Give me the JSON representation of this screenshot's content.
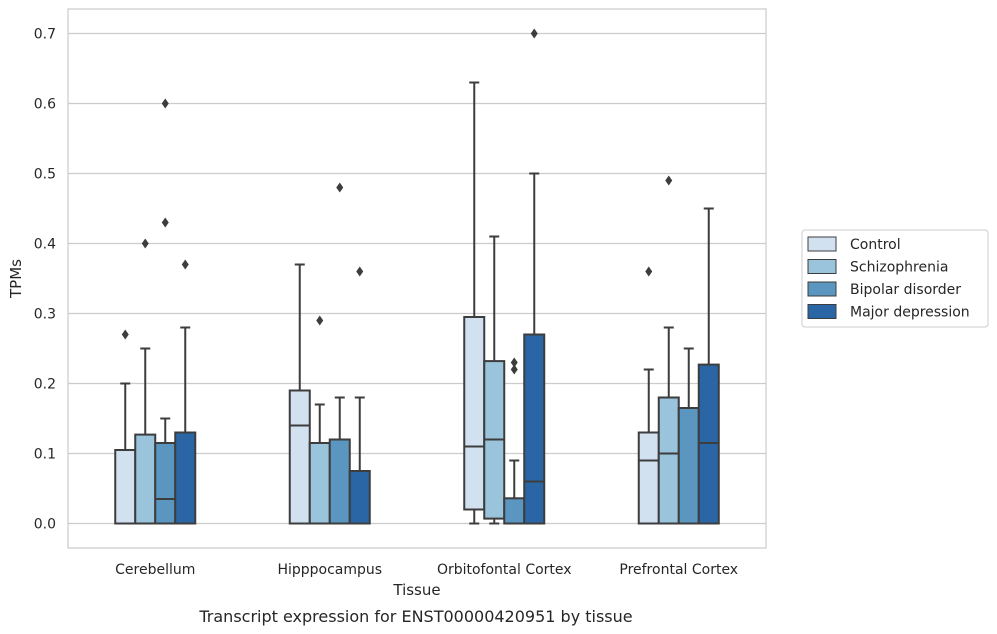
{
  "chart_data": {
    "type": "box",
    "caption": "Transcript expression for ENST00000420951 by tissue",
    "xlabel": "Tissue",
    "ylabel": "TPMs",
    "ylim": [
      -0.035,
      0.735
    ],
    "yticks": [
      0.0,
      0.1,
      0.2,
      0.3,
      0.4,
      0.5,
      0.6,
      0.7
    ],
    "ytick_labels": [
      "0.0",
      "0.1",
      "0.2",
      "0.3",
      "0.4",
      "0.5",
      "0.6",
      "0.7"
    ],
    "grid": true,
    "legend_position": "right",
    "categories": [
      "Cerebellum",
      "Hipppocampus",
      "Orbitofontal Cortex",
      "Prefrontal Cortex"
    ],
    "series": [
      {
        "name": "Control",
        "color": "#d2e1f0",
        "boxes": [
          {
            "whislo": 0.0,
            "q1": 0.0,
            "med": 0.0,
            "q3": 0.105,
            "whishi": 0.2,
            "fliers": [
              0.27
            ]
          },
          {
            "whislo": 0.0,
            "q1": 0.0,
            "med": 0.14,
            "q3": 0.19,
            "whishi": 0.37,
            "fliers": []
          },
          {
            "whislo": 0.0,
            "q1": 0.02,
            "med": 0.11,
            "q3": 0.295,
            "whishi": 0.63,
            "fliers": []
          },
          {
            "whislo": 0.0,
            "q1": 0.0,
            "med": 0.09,
            "q3": 0.13,
            "whishi": 0.22,
            "fliers": [
              0.36
            ]
          }
        ]
      },
      {
        "name": "Schizophrenia",
        "color": "#9ac4db",
        "boxes": [
          {
            "whislo": 0.0,
            "q1": 0.0,
            "med": 0.0,
            "q3": 0.127,
            "whishi": 0.25,
            "fliers": [
              0.4
            ]
          },
          {
            "whislo": 0.0,
            "q1": 0.0,
            "med": 0.0,
            "q3": 0.115,
            "whishi": 0.17,
            "fliers": [
              0.29
            ]
          },
          {
            "whislo": 0.0,
            "q1": 0.007,
            "med": 0.12,
            "q3": 0.232,
            "whishi": 0.41,
            "fliers": []
          },
          {
            "whislo": 0.0,
            "q1": 0.0,
            "med": 0.1,
            "q3": 0.18,
            "whishi": 0.28,
            "fliers": [
              0.49
            ]
          }
        ]
      },
      {
        "name": "Bipolar disorder",
        "color": "#5a96c0",
        "boxes": [
          {
            "whislo": 0.0,
            "q1": 0.0,
            "med": 0.035,
            "q3": 0.115,
            "whishi": 0.15,
            "fliers": [
              0.43,
              0.6
            ]
          },
          {
            "whislo": 0.0,
            "q1": 0.0,
            "med": 0.0,
            "q3": 0.12,
            "whishi": 0.18,
            "fliers": [
              0.48
            ]
          },
          {
            "whislo": 0.0,
            "q1": 0.0,
            "med": 0.0,
            "q3": 0.036,
            "whishi": 0.09,
            "fliers": [
              0.22,
              0.23
            ]
          },
          {
            "whislo": 0.0,
            "q1": 0.0,
            "med": 0.0,
            "q3": 0.165,
            "whishi": 0.25,
            "fliers": []
          }
        ]
      },
      {
        "name": "Major depression",
        "color": "#2a66a6",
        "boxes": [
          {
            "whislo": 0.0,
            "q1": 0.0,
            "med": 0.0,
            "q3": 0.13,
            "whishi": 0.28,
            "fliers": [
              0.37
            ]
          },
          {
            "whislo": 0.0,
            "q1": 0.0,
            "med": 0.0,
            "q3": 0.075,
            "whishi": 0.18,
            "fliers": [
              0.36
            ]
          },
          {
            "whislo": 0.0,
            "q1": 0.0,
            "med": 0.06,
            "q3": 0.27,
            "whishi": 0.5,
            "fliers": [
              0.7
            ]
          },
          {
            "whislo": 0.0,
            "q1": 0.0,
            "med": 0.115,
            "q3": 0.227,
            "whishi": 0.45,
            "fliers": []
          }
        ]
      }
    ]
  }
}
